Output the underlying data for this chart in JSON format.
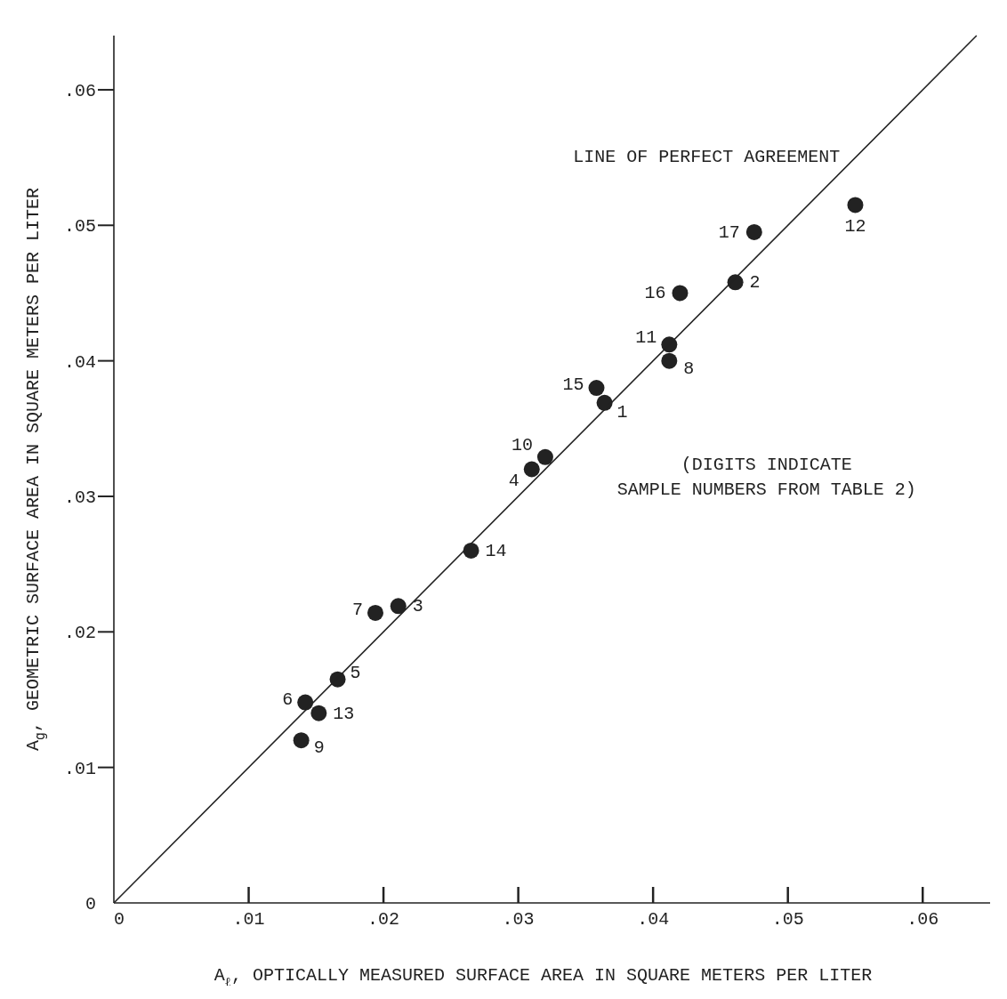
{
  "chart_data": {
    "type": "scatter",
    "xlabel": "A$_{ℓ}$, OPTICALLY MEASURED SURFACE AREA IN SQUARE METERS PER LITER",
    "ylabel": "A$_{g}$, GEOMETRIC SURFACE AREA IN SQUARE METERS PER LITER",
    "xlim": [
      0,
      0.065
    ],
    "ylim": [
      0,
      0.064
    ],
    "xticks": [
      0,
      {
        "value": 0.01,
        "label": ".01"
      },
      {
        "value": 0.02,
        "label": ".02"
      },
      {
        "value": 0.03,
        "label": ".03"
      },
      {
        "value": 0.04,
        "label": ".04"
      },
      {
        "value": 0.05,
        "label": ".05"
      },
      {
        "value": 0.06,
        "label": ".06"
      }
    ],
    "yticks": [
      0,
      {
        "value": 0.01,
        "label": ".01"
      },
      {
        "value": 0.02,
        "label": ".02"
      },
      {
        "value": 0.03,
        "label": ".03"
      },
      {
        "value": 0.04,
        "label": ".04"
      },
      {
        "value": 0.05,
        "label": ".05"
      },
      {
        "value": 0.06,
        "label": ".06"
      }
    ],
    "grid": false,
    "series": [
      {
        "marker": "circle",
        "color": "#222222",
        "x": [
          0.0364,
          0.0461,
          0.0211,
          0.031,
          0.0166,
          0.0142,
          0.0194,
          0.0412,
          0.0139,
          0.032,
          0.0412,
          0.055,
          0.0152,
          0.0265,
          0.0358,
          0.042,
          0.0475
        ],
        "values": [
          0.0369,
          0.0458,
          0.0219,
          0.032,
          0.0165,
          0.0148,
          0.0214,
          0.04,
          0.012,
          0.0329,
          0.0412,
          0.0515,
          0.014,
          0.026,
          0.038,
          0.045,
          0.0495
        ]
      },
      {
        "type": "line",
        "name": "LINE OF PERFECT AGREEMENT",
        "color": "#222222",
        "line_style": "solid",
        "x": [
          0,
          0.064
        ],
        "values": [
          0,
          0.064
        ]
      }
    ],
    "annotations": [
      {
        "text": "1",
        "x": 0.0364,
        "y": 0.0369
      },
      {
        "text": "2",
        "x": 0.0461,
        "y": 0.0458
      },
      {
        "text": "3",
        "x": 0.0211,
        "y": 0.0219
      },
      {
        "text": "4",
        "x": 0.031,
        "y": 0.032
      },
      {
        "text": "5",
        "x": 0.0166,
        "y": 0.0165
      },
      {
        "text": "6",
        "x": 0.0142,
        "y": 0.0148
      },
      {
        "text": "7",
        "x": 0.0194,
        "y": 0.0214
      },
      {
        "text": "8",
        "x": 0.0412,
        "y": 0.04
      },
      {
        "text": "9",
        "x": 0.0139,
        "y": 0.012
      },
      {
        "text": "10",
        "x": 0.032,
        "y": 0.0329
      },
      {
        "text": "11",
        "x": 0.0412,
        "y": 0.0412
      },
      {
        "text": "12",
        "x": 0.055,
        "y": 0.0515
      },
      {
        "text": "13",
        "x": 0.0152,
        "y": 0.014
      },
      {
        "text": "14",
        "x": 0.0265,
        "y": 0.026
      },
      {
        "text": "15",
        "x": 0.0358,
        "y": 0.038
      },
      {
        "text": "16",
        "x": 0.042,
        "y": 0.045
      },
      {
        "text": "17",
        "x": 0.0475,
        "y": 0.0495
      },
      "(DIGITS INDICATE\nSAMPLE NUMBERS FROM TABLE 2)"
    ]
  }
}
